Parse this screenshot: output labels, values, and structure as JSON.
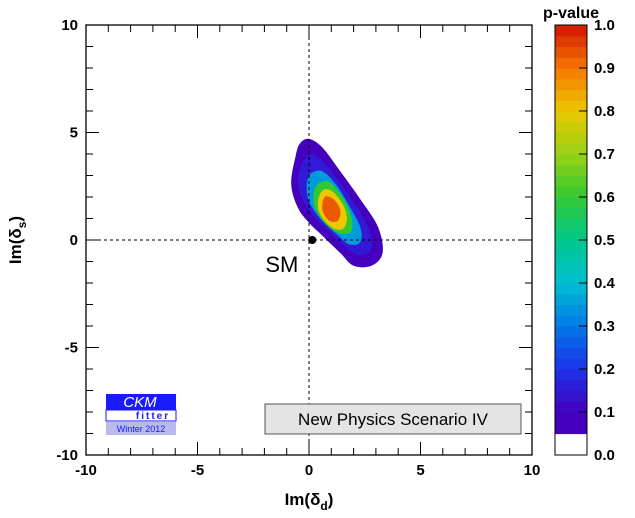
{
  "chart_data": {
    "type": "heatmap",
    "x": {
      "label_main": "Im(δ",
      "label_sub": "d",
      "label_close": ")",
      "range": [
        -10,
        10
      ],
      "ticks": [
        -10,
        -5,
        0,
        5,
        10
      ],
      "tick_labels": [
        "-10",
        "-5",
        "0",
        "5",
        "10"
      ]
    },
    "y": {
      "label_main": "Im(δ",
      "label_sub": "s",
      "label_close": ")",
      "range": [
        -10,
        10
      ],
      "ticks": [
        -10,
        -5,
        0,
        5,
        10
      ],
      "tick_labels": [
        "-10",
        "-5",
        "0",
        "5",
        "10"
      ]
    },
    "colorbar": {
      "title": "p-value",
      "range": [
        0,
        1
      ],
      "tick_values": [
        0.0,
        0.1,
        0.2,
        0.3,
        0.4,
        0.5,
        0.6,
        0.7,
        0.8,
        0.9,
        1.0
      ],
      "tick_labels": [
        "0.0",
        "0.1",
        "0.2",
        "0.3",
        "0.4",
        "0.5",
        "0.6",
        "0.7",
        "0.8",
        "0.9",
        "1.0"
      ]
    },
    "contours": [
      {
        "p_value": 0.05,
        "points": [
          [
            -0.6,
            3.9
          ],
          [
            -0.4,
            4.5
          ],
          [
            0.0,
            4.7
          ],
          [
            0.6,
            4.3
          ],
          [
            1.4,
            3.2
          ],
          [
            2.3,
            1.9
          ],
          [
            3.1,
            0.6
          ],
          [
            3.3,
            -0.6
          ],
          [
            2.8,
            -1.2
          ],
          [
            2.0,
            -1.2
          ],
          [
            1.4,
            -0.6
          ],
          [
            0.6,
            0.2
          ],
          [
            0.0,
            0.8
          ],
          [
            -0.5,
            1.5
          ],
          [
            -0.8,
            2.6
          ]
        ]
      },
      {
        "p_value": 0.15,
        "points": [
          [
            -0.3,
            3.6
          ],
          [
            0.1,
            4.0
          ],
          [
            0.6,
            3.7
          ],
          [
            1.3,
            2.8
          ],
          [
            2.1,
            1.6
          ],
          [
            2.7,
            0.5
          ],
          [
            2.8,
            -0.4
          ],
          [
            2.2,
            -0.7
          ],
          [
            1.5,
            -0.2
          ],
          [
            0.8,
            0.5
          ],
          [
            0.2,
            1.1
          ],
          [
            -0.3,
            1.9
          ],
          [
            -0.5,
            2.8
          ]
        ]
      },
      {
        "p_value": 0.35,
        "points": [
          [
            0.1,
            3.1
          ],
          [
            0.6,
            3.2
          ],
          [
            1.2,
            2.6
          ],
          [
            1.8,
            1.6
          ],
          [
            2.3,
            0.6
          ],
          [
            2.3,
            -0.1
          ],
          [
            1.8,
            -0.2
          ],
          [
            1.2,
            0.3
          ],
          [
            0.5,
            1.0
          ],
          [
            0.0,
            1.8
          ],
          [
            -0.1,
            2.6
          ]
        ]
      },
      {
        "p_value": 0.6,
        "points": [
          [
            0.4,
            2.6
          ],
          [
            0.9,
            2.7
          ],
          [
            1.5,
            2.0
          ],
          [
            1.9,
            1.1
          ],
          [
            1.9,
            0.4
          ],
          [
            1.4,
            0.3
          ],
          [
            0.8,
            0.7
          ],
          [
            0.3,
            1.4
          ],
          [
            0.2,
            2.1
          ]
        ]
      },
      {
        "p_value": 0.8,
        "points": [
          [
            0.6,
            2.3
          ],
          [
            1.0,
            2.3
          ],
          [
            1.5,
            1.7
          ],
          [
            1.7,
            1.0
          ],
          [
            1.5,
            0.5
          ],
          [
            1.0,
            0.6
          ],
          [
            0.5,
            1.2
          ],
          [
            0.4,
            1.8
          ]
        ]
      },
      {
        "p_value": 0.93,
        "points": [
          [
            0.7,
            2.0
          ],
          [
            1.1,
            1.9
          ],
          [
            1.4,
            1.4
          ],
          [
            1.3,
            0.9
          ],
          [
            0.9,
            0.9
          ],
          [
            0.6,
            1.4
          ]
        ]
      }
    ],
    "reference_lines": {
      "x": 0,
      "y": 0
    },
    "annotations": [
      {
        "label": "SM",
        "x": 0.15,
        "y": 0.0
      }
    ],
    "legend_box": "New Physics Scenario IV",
    "grid": false
  },
  "logo": {
    "line1": "CKM",
    "line2": "fitter",
    "line3": "Winter 2012"
  }
}
